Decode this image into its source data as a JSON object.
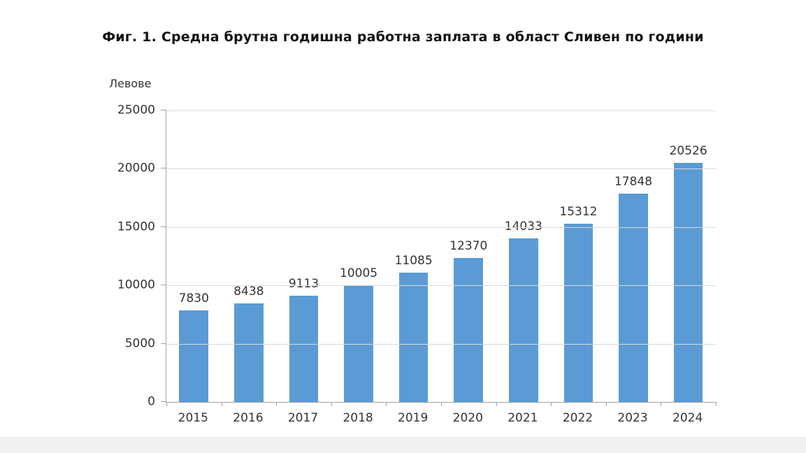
{
  "chart": {
    "title": "Фиг. 1. Средна брутна годишна работна заплата в област Сливен по години",
    "unit_label": "Левове"
  },
  "chart_data": {
    "type": "bar",
    "title": "Фиг. 1. Средна брутна годишна работна заплата в област Сливен по години",
    "unit_label": "Левове",
    "categories": [
      "2015",
      "2016",
      "2017",
      "2018",
      "2019",
      "2020",
      "2021",
      "2022",
      "2023",
      "2024"
    ],
    "values": [
      7830,
      8438,
      9113,
      10005,
      11085,
      12370,
      14033,
      15312,
      17848,
      20526
    ],
    "data_labels": true,
    "xlabel": "",
    "ylabel": "Левове",
    "ylim": [
      0,
      25000
    ],
    "yticks": [
      0,
      5000,
      10000,
      15000,
      20000,
      25000
    ],
    "grid": true,
    "legend": "none",
    "bar_color": "#5b9bd5",
    "gridline_color": "#d9d9d9",
    "axis_color": "#a3a3a3",
    "label_color": "#333333"
  }
}
